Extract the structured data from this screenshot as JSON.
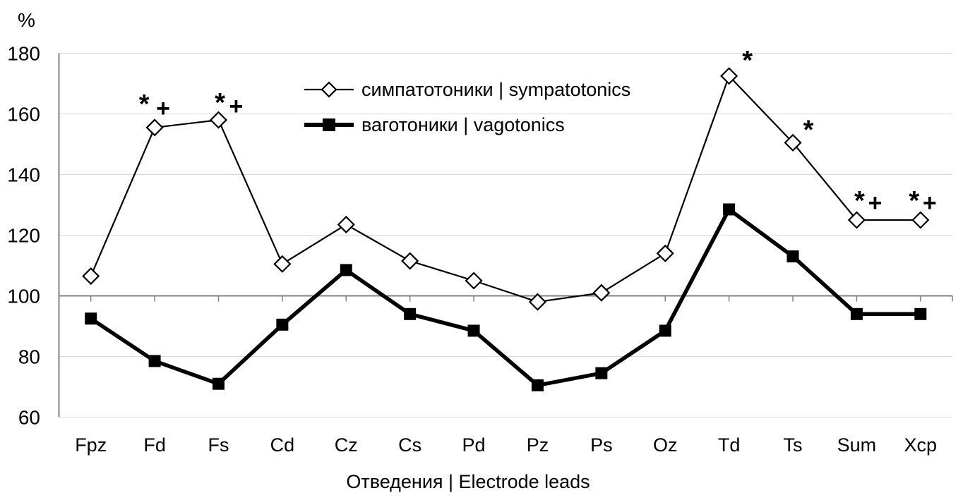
{
  "figure": {
    "background": "#ffffff"
  },
  "chart_data": {
    "type": "line",
    "title": "",
    "ylabel": "%",
    "xlabel": "Отведения | Electrode leads",
    "categories": [
      "Fpz",
      "Fd",
      "Fs",
      "Cd",
      "Cz",
      "Cs",
      "Pd",
      "Pz",
      "Ps",
      "Oz",
      "Td",
      "Ts",
      "Sum",
      "Xcp"
    ],
    "ylim": [
      60,
      180
    ],
    "yticks": [
      180,
      160,
      140,
      120,
      100,
      80,
      60
    ],
    "baseline_value": 100,
    "grid": "horizontal",
    "legend_position": "inside-top-center",
    "series": [
      {
        "name": "симпатотоники | sympatotonics",
        "marker": "diamond-open",
        "line": "thin",
        "color": "#000000",
        "values": [
          106.5,
          155.5,
          158,
          110.5,
          123.5,
          111.5,
          105,
          98,
          101,
          114,
          172.5,
          150.5,
          125,
          125
        ]
      },
      {
        "name": "ваготоники | vagotonics",
        "marker": "square-filled",
        "line": "thick",
        "color": "#000000",
        "values": [
          92.5,
          78.5,
          71,
          90.5,
          108.5,
          94,
          88.5,
          70.5,
          74.5,
          88.5,
          128.5,
          113,
          94,
          94
        ]
      }
    ],
    "annotations": [
      {
        "category": "Fd",
        "text": "*+",
        "star_offset": [
          -15,
          -21
        ],
        "plus_offset": [
          12,
          -16
        ]
      },
      {
        "category": "Fs",
        "text": "*+",
        "star_offset": [
          2,
          -12
        ],
        "plus_offset": [
          25,
          -8
        ]
      },
      {
        "category": "Td",
        "text": "*",
        "star_offset": [
          26,
          -10
        ]
      },
      {
        "category": "Ts",
        "text": "*",
        "star_offset": [
          22,
          -6
        ]
      },
      {
        "category": "Sum",
        "text": "*+",
        "star_offset": [
          4,
          -15
        ],
        "plus_offset": [
          26,
          -13
        ]
      },
      {
        "category": "Xcp",
        "text": "*+",
        "star_offset": [
          -9,
          -15
        ],
        "plus_offset": [
          13,
          -13
        ]
      }
    ],
    "colors": {
      "series": "#000000",
      "gridline": "#d9d9d9",
      "axis": "#808080",
      "text": "#000000"
    }
  }
}
